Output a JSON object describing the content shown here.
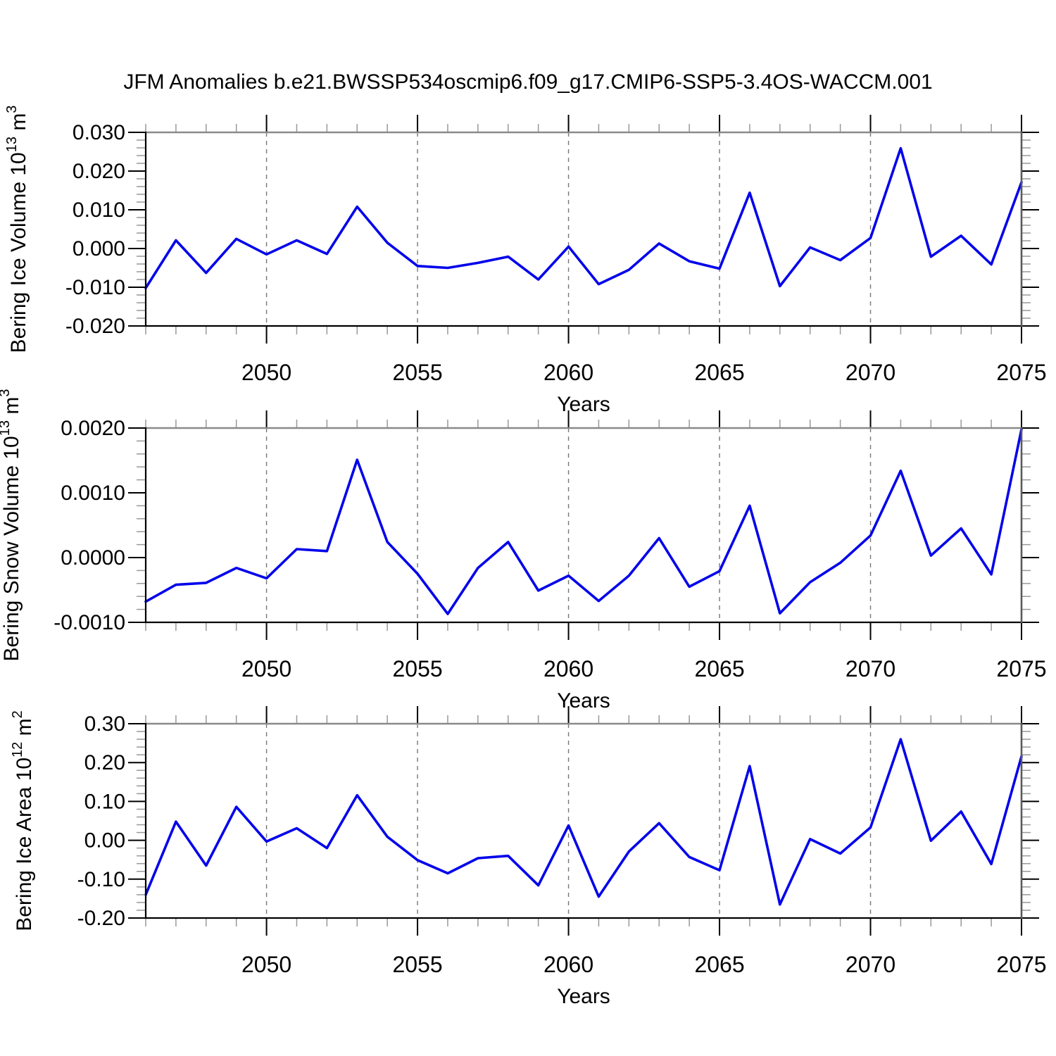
{
  "title": "JFM Anomalies b.e21.BWSSP534oscmip6.f09_g17.CMIP6-SSP5-3.4OS-WACCM.001",
  "x_axis": {
    "label": "Years",
    "start": 2046,
    "end": 2075,
    "major_tick_years": [
      2050,
      2055,
      2060,
      2065,
      2070,
      2075
    ],
    "gridline_years": [
      2050,
      2055,
      2060,
      2065,
      2070
    ],
    "minor_tick_step": 1
  },
  "style": {
    "line_color": "#0202EB",
    "grid_color": "#777777",
    "frame_color": "#000000",
    "frame_top_color": "#8a8a8a",
    "frame_right_color": "#5a5a5a",
    "major_tick_color": "#000000",
    "minor_tick_color": "#999999",
    "text_color": "#000000"
  },
  "chart_data": [
    {
      "type": "line",
      "name": "bering-ice-volume",
      "ylabel": "Bering Ice Volume 10^13 m^3",
      "ylabel_rich": [
        {
          "t": "Bering Ice Volume 10"
        },
        {
          "t": "13",
          "sup": true
        },
        {
          "t": " m"
        },
        {
          "t": "3",
          "sup": true
        }
      ],
      "xlabel": "Years",
      "ylim": [
        -0.02,
        0.03
      ],
      "minor_step": 0.002,
      "yticks": [
        {
          "v": 0.03,
          "label": "0.030"
        },
        {
          "v": 0.02,
          "label": "0.020"
        },
        {
          "v": 0.01,
          "label": "0.010"
        },
        {
          "v": 0.0,
          "label": "0.000"
        },
        {
          "v": -0.01,
          "label": "-0.010"
        },
        {
          "v": -0.02,
          "label": "-0.020"
        }
      ],
      "x": [
        2046,
        2047,
        2048,
        2049,
        2050,
        2051,
        2052,
        2053,
        2054,
        2055,
        2056,
        2057,
        2058,
        2059,
        2060,
        2061,
        2062,
        2063,
        2064,
        2065,
        2066,
        2067,
        2068,
        2069,
        2070,
        2071,
        2072,
        2073,
        2074,
        2075
      ],
      "values": [
        -0.0102,
        0.0021,
        -0.0063,
        0.0025,
        -0.0015,
        0.0021,
        -0.0014,
        0.0108,
        0.0015,
        -0.0045,
        -0.005,
        -0.0037,
        -0.0021,
        -0.008,
        0.0005,
        -0.0092,
        -0.0055,
        0.0013,
        -0.0033,
        -0.0052,
        0.0144,
        -0.0097,
        0.0003,
        -0.003,
        0.0027,
        0.0259,
        -0.0021,
        0.0033,
        -0.0041,
        0.0171
      ]
    },
    {
      "type": "line",
      "name": "bering-snow-volume",
      "ylabel": "Bering Snow Volume 10^13 m^3",
      "ylabel_rich": [
        {
          "t": "Bering Snow Volume 10"
        },
        {
          "t": "13",
          "sup": true
        },
        {
          "t": " m"
        },
        {
          "t": "3",
          "sup": true
        }
      ],
      "xlabel": "Years",
      "ylim": [
        -0.001,
        0.002
      ],
      "minor_step": 0.0002,
      "yticks": [
        {
          "v": 0.002,
          "label": "0.0020"
        },
        {
          "v": 0.001,
          "label": "0.0010"
        },
        {
          "v": 0.0,
          "label": "0.0000"
        },
        {
          "v": -0.001,
          "label": "-0.0010"
        }
      ],
      "x": [
        2046,
        2047,
        2048,
        2049,
        2050,
        2051,
        2052,
        2053,
        2054,
        2055,
        2056,
        2057,
        2058,
        2059,
        2060,
        2061,
        2062,
        2063,
        2064,
        2065,
        2066,
        2067,
        2068,
        2069,
        2070,
        2071,
        2072,
        2073,
        2074,
        2075
      ],
      "values": [
        -0.00068,
        -0.00042,
        -0.00039,
        -0.00016,
        -0.00032,
        0.00013,
        0.0001,
        0.00151,
        0.00024,
        -0.00025,
        -0.00087,
        -0.00016,
        0.00024,
        -0.00051,
        -0.00028,
        -0.00067,
        -0.00028,
        0.0003,
        -0.00045,
        -0.00021,
        0.0008,
        -0.00086,
        -0.00038,
        -8e-05,
        0.00034,
        0.00134,
        3e-05,
        0.00045,
        -0.00026,
        0.00198
      ]
    },
    {
      "type": "line",
      "name": "bering-ice-area",
      "ylabel": "Bering Ice Area 10^12 m^2",
      "ylabel_rich": [
        {
          "t": "Bering Ice Area 10"
        },
        {
          "t": "12",
          "sup": true
        },
        {
          "t": " m"
        },
        {
          "t": "2",
          "sup": true
        }
      ],
      "xlabel": "Years",
      "ylim": [
        -0.2,
        0.3
      ],
      "minor_step": 0.02,
      "yticks": [
        {
          "v": 0.3,
          "label": "0.30"
        },
        {
          "v": 0.2,
          "label": "0.20"
        },
        {
          "v": 0.1,
          "label": "0.10"
        },
        {
          "v": 0.0,
          "label": "0.00"
        },
        {
          "v": -0.1,
          "label": "-0.10"
        },
        {
          "v": -0.2,
          "label": "-0.20"
        }
      ],
      "x": [
        2046,
        2047,
        2048,
        2049,
        2050,
        2051,
        2052,
        2053,
        2054,
        2055,
        2056,
        2057,
        2058,
        2059,
        2060,
        2061,
        2062,
        2063,
        2064,
        2065,
        2066,
        2067,
        2068,
        2069,
        2070,
        2071,
        2072,
        2073,
        2074,
        2075
      ],
      "values": [
        -0.14,
        0.048,
        -0.065,
        0.086,
        -0.003,
        0.031,
        -0.02,
        0.116,
        0.009,
        -0.051,
        -0.085,
        -0.046,
        -0.04,
        -0.116,
        0.038,
        -0.145,
        -0.029,
        0.044,
        -0.043,
        -0.077,
        0.191,
        -0.165,
        0.003,
        -0.034,
        0.033,
        0.26,
        -0.001,
        0.074,
        -0.061,
        0.216
      ]
    }
  ]
}
